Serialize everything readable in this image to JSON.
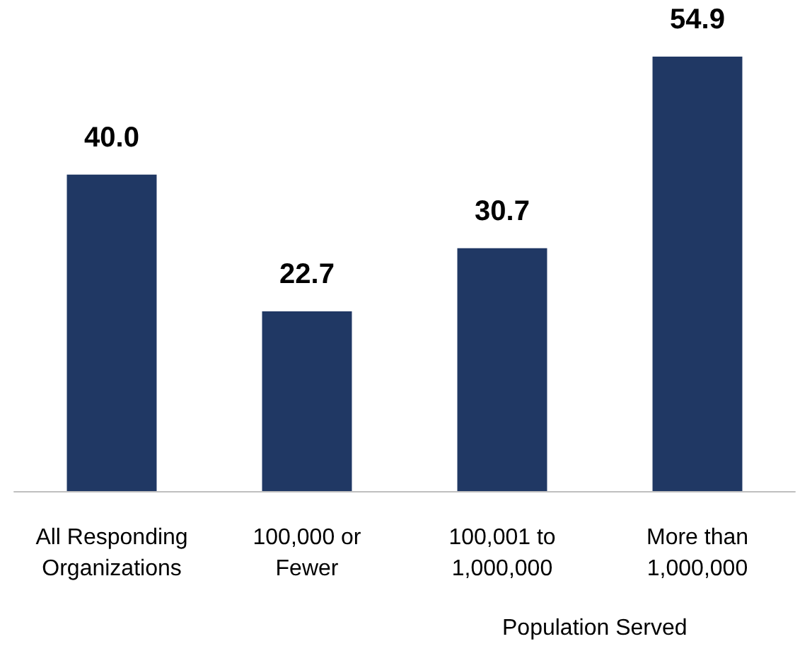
{
  "chart_data": {
    "type": "bar",
    "xlabel": "Population Served",
    "categories": [
      "All Responding\nOrganizations",
      "100,000 or\nFewer",
      "100,001 to\n1,000,000",
      "More than\n1,000,000"
    ],
    "values": [
      40.0,
      22.7,
      30.7,
      54.9
    ],
    "value_labels": [
      "40.0",
      "22.7",
      "30.7",
      "54.9"
    ],
    "color": "#203864"
  }
}
